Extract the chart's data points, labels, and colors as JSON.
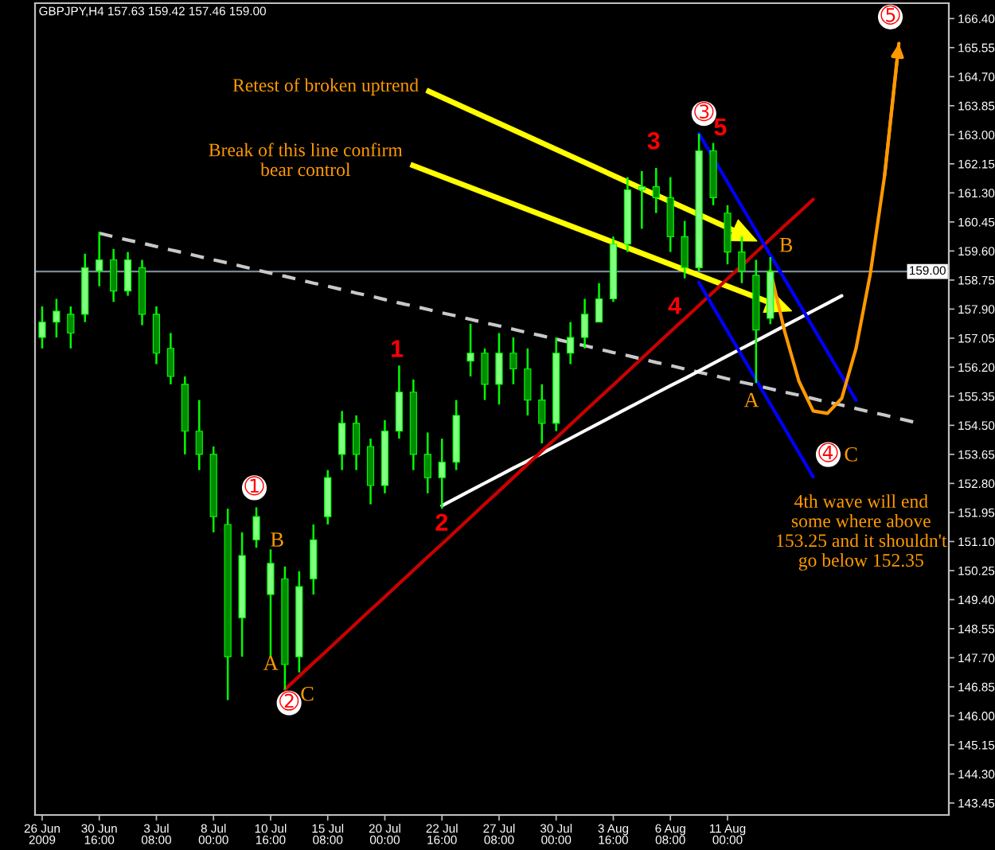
{
  "chart_data": {
    "type": "candlestick",
    "title": "GBPJPY,H4 157.63 159.42 157.46 159.00",
    "color": "#00ff00",
    "categories": [
      "26 Jun 2009",
      null,
      null,
      null,
      "30 Jun 16:00",
      null,
      null,
      null,
      "3 Jul 08:00",
      null,
      null,
      null,
      "8 Jul 00:00",
      null,
      null,
      null,
      "10 Jul 16:00",
      null,
      null,
      null,
      "15 Jul 08:00",
      null,
      null,
      null,
      "20 Jul 00:00",
      null,
      null,
      null,
      "22 Jul 16:00",
      null,
      null,
      null,
      "27 Jul 08:00",
      null,
      null,
      null,
      "30 Jul 00:00",
      null,
      null,
      null,
      "3 Aug 16:00",
      null,
      null,
      null,
      "6 Aug 08:00",
      null,
      null,
      null,
      "11 Aug 00:00",
      null,
      null,
      null,
      null,
      null,
      null,
      null,
      null,
      null,
      null,
      null,
      null,
      null,
      null,
      null
    ],
    "ohlc": [
      [
        157.07,
        157.98,
        156.75,
        157.52
      ],
      [
        157.52,
        158.2,
        157.07,
        157.84
      ],
      [
        157.75,
        157.98,
        156.75,
        157.2
      ],
      [
        157.75,
        159.52,
        157.52,
        159.11
      ],
      [
        159.02,
        160.16,
        158.57,
        159.34
      ],
      [
        159.34,
        159.66,
        158.11,
        158.43
      ],
      [
        158.43,
        159.57,
        158.29,
        159.34
      ],
      [
        159.11,
        159.34,
        157.43,
        157.75
      ],
      [
        157.75,
        157.98,
        156.29,
        156.61
      ],
      [
        156.75,
        157.2,
        155.7,
        155.93
      ],
      [
        155.7,
        155.93,
        153.65,
        154.33
      ],
      [
        154.33,
        155.24,
        153.19,
        153.65
      ],
      [
        153.65,
        153.88,
        151.37,
        151.83
      ],
      [
        151.6,
        152.06,
        146.46,
        147.73
      ],
      [
        148.87,
        151.37,
        147.73,
        150.69
      ],
      [
        151.15,
        152.1,
        150.92,
        151.83
      ],
      [
        149.55,
        150.87,
        147.73,
        150.46
      ],
      [
        150.01,
        150.37,
        146.77,
        147.5
      ],
      [
        147.73,
        150.23,
        147.27,
        149.78
      ],
      [
        150.01,
        151.6,
        149.55,
        151.15
      ],
      [
        151.83,
        153.19,
        151.6,
        152.97
      ],
      [
        153.65,
        154.92,
        153.19,
        154.56
      ],
      [
        154.56,
        154.79,
        153.19,
        153.65
      ],
      [
        153.88,
        154.11,
        152.19,
        152.74
      ],
      [
        152.74,
        154.65,
        152.51,
        154.33
      ],
      [
        154.33,
        156.25,
        154.11,
        155.47
      ],
      [
        155.47,
        155.84,
        153.19,
        153.65
      ],
      [
        153.65,
        154.29,
        152.51,
        152.97
      ],
      [
        152.97,
        154.11,
        152.06,
        153.42
      ],
      [
        153.42,
        155.24,
        153.19,
        154.79
      ],
      [
        156.38,
        157.47,
        155.93,
        156.61
      ],
      [
        156.61,
        156.75,
        155.24,
        155.7
      ],
      [
        155.7,
        157.2,
        155.11,
        156.61
      ],
      [
        156.61,
        157.07,
        155.7,
        156.15
      ],
      [
        156.15,
        156.75,
        154.79,
        155.24
      ],
      [
        155.24,
        155.7,
        153.97,
        154.56
      ],
      [
        154.56,
        157.07,
        154.33,
        156.61
      ],
      [
        156.61,
        157.52,
        156.29,
        157.07
      ],
      [
        157.07,
        158.2,
        156.75,
        157.75
      ],
      [
        157.52,
        158.66,
        157.52,
        158.2
      ],
      [
        158.2,
        160.02,
        158.11,
        159.8
      ],
      [
        159.8,
        161.76,
        159.57,
        161.39
      ],
      [
        161.39,
        161.94,
        160.25,
        161.48
      ],
      [
        161.48,
        162.03,
        160.71,
        161.16
      ],
      [
        161.16,
        161.76,
        159.57,
        160.02
      ],
      [
        160.02,
        160.48,
        158.8,
        159.11
      ],
      [
        159.11,
        163.03,
        159.02,
        162.53
      ],
      [
        162.53,
        162.76,
        160.94,
        161.16
      ],
      [
        160.71,
        160.94,
        159.21,
        159.57
      ],
      [
        159.57,
        160.02,
        158.66,
        159.02
      ],
      [
        158.89,
        159.34,
        155.74,
        157.29
      ],
      [
        157.63,
        159.42,
        157.46,
        159.0
      ],
      null,
      null,
      null,
      null,
      null,
      null,
      null,
      null,
      null,
      null,
      null,
      null
    ],
    "ylim": [
      143.1,
      166.85
    ],
    "yticks": [
      {
        "value": 166.4,
        "label": "166.40"
      },
      {
        "value": 165.55,
        "label": "165.55"
      },
      {
        "value": 164.7,
        "label": "164.70"
      },
      {
        "value": 163.85,
        "label": "163.85"
      },
      {
        "value": 163.0,
        "label": "163.00"
      },
      {
        "value": 162.15,
        "label": "162.15"
      },
      {
        "value": 161.3,
        "label": "161.30"
      },
      {
        "value": 160.45,
        "label": "160.45"
      },
      {
        "value": 159.6,
        "label": "159.60"
      },
      {
        "value": 158.75,
        "label": "158.75"
      },
      {
        "value": 157.9,
        "label": "157.90"
      },
      {
        "value": 157.05,
        "label": "157.05"
      },
      {
        "value": 156.2,
        "label": "156.20"
      },
      {
        "value": 155.35,
        "label": "155.35"
      },
      {
        "value": 154.5,
        "label": "154.50"
      },
      {
        "value": 153.65,
        "label": "153.65"
      },
      {
        "value": 152.8,
        "label": "152.80"
      },
      {
        "value": 151.95,
        "label": "151.95"
      },
      {
        "value": 151.1,
        "label": "151.10"
      },
      {
        "value": 150.25,
        "label": "150.25"
      },
      {
        "value": 149.4,
        "label": "149.40"
      },
      {
        "value": 148.55,
        "label": "148.55"
      },
      {
        "value": 147.7,
        "label": "147.70"
      },
      {
        "value": 146.85,
        "label": "146.85"
      },
      {
        "value": 146.0,
        "label": "146.00"
      },
      {
        "value": 145.15,
        "label": "145.15"
      },
      {
        "value": 144.3,
        "label": "144.30"
      },
      {
        "value": 143.45,
        "label": "143.45"
      }
    ],
    "ref_lines": [
      {
        "axis": "y",
        "value": 159.0,
        "label": "159.00",
        "color": "#778899"
      }
    ],
    "series": [
      {
        "type": "line",
        "color": "#c8c8c8",
        "line_style": "dashed",
        "values": [
          null,
          null,
          null,
          null,
          160.12,
          160.02,
          159.92,
          159.83,
          159.73,
          159.63,
          159.54,
          159.44,
          159.34,
          159.25,
          159.15,
          159.05,
          158.95,
          158.86,
          158.76,
          158.66,
          158.57,
          158.47,
          158.37,
          158.28,
          158.18,
          158.08,
          157.99,
          157.89,
          157.79,
          157.7,
          157.6,
          157.5,
          157.41,
          157.31,
          157.21,
          157.12,
          157.02,
          156.92,
          156.83,
          156.73,
          156.63,
          156.54,
          156.44,
          156.34,
          156.25,
          156.15,
          156.05,
          155.96,
          155.86,
          155.76,
          155.67,
          155.57,
          155.47,
          155.38,
          155.28,
          155.18,
          155.09,
          154.99,
          154.89,
          154.8,
          154.7,
          154.6,
          null,
          null
        ]
      },
      {
        "type": "line",
        "color": "#ffffff",
        "values": [
          null,
          null,
          null,
          null,
          null,
          null,
          null,
          null,
          null,
          null,
          null,
          null,
          null,
          null,
          null,
          null,
          null,
          null,
          null,
          null,
          null,
          null,
          null,
          null,
          null,
          null,
          null,
          null,
          152.15,
          152.37,
          152.59,
          152.81,
          153.03,
          153.25,
          153.46,
          153.68,
          153.9,
          154.12,
          154.34,
          154.56,
          154.78,
          155.0,
          155.22,
          155.44,
          155.66,
          155.87,
          156.09,
          156.31,
          156.53,
          156.75,
          156.97,
          157.19,
          157.41,
          157.63,
          157.85,
          158.07,
          158.29,
          null,
          null,
          null,
          null,
          null,
          null,
          null
        ]
      },
      {
        "type": "line",
        "color": "#cc0000",
        "values": [
          null,
          null,
          null,
          null,
          null,
          null,
          null,
          null,
          null,
          null,
          null,
          null,
          null,
          null,
          null,
          null,
          null,
          146.77,
          147.16,
          147.55,
          147.93,
          148.32,
          148.71,
          149.1,
          149.48,
          149.87,
          150.26,
          150.65,
          151.03,
          151.42,
          151.81,
          152.2,
          152.58,
          152.97,
          153.36,
          153.75,
          154.13,
          154.52,
          154.91,
          155.3,
          155.68,
          156.07,
          156.46,
          156.85,
          157.24,
          157.62,
          158.01,
          158.4,
          158.79,
          159.17,
          159.56,
          159.95,
          160.34,
          160.72,
          161.11,
          null,
          null,
          null,
          null,
          null,
          null,
          null,
          null,
          null
        ]
      },
      {
        "type": "line",
        "color": "#0000ff",
        "values": [
          null,
          null,
          null,
          null,
          null,
          null,
          null,
          null,
          null,
          null,
          null,
          null,
          null,
          null,
          null,
          null,
          null,
          null,
          null,
          null,
          null,
          null,
          null,
          null,
          null,
          null,
          null,
          null,
          null,
          null,
          null,
          null,
          null,
          null,
          null,
          null,
          null,
          null,
          null,
          null,
          null,
          null,
          null,
          null,
          null,
          null,
          163.03,
          162.32,
          161.61,
          160.9,
          160.19,
          159.48,
          158.78,
          158.07,
          157.36,
          156.65,
          155.94,
          155.23,
          null,
          null,
          null,
          null,
          null,
          null
        ]
      },
      {
        "type": "line",
        "color": "#0000ff",
        "values": [
          null,
          null,
          null,
          null,
          null,
          null,
          null,
          null,
          null,
          null,
          null,
          null,
          null,
          null,
          null,
          null,
          null,
          null,
          null,
          null,
          null,
          null,
          null,
          null,
          null,
          null,
          null,
          null,
          null,
          null,
          null,
          null,
          null,
          null,
          null,
          null,
          null,
          null,
          null,
          null,
          null,
          null,
          null,
          null,
          null,
          null,
          158.68,
          157.96,
          157.25,
          156.54,
          155.83,
          155.12,
          154.41,
          153.7,
          152.99,
          null,
          null,
          null,
          null,
          null,
          null,
          null,
          null,
          null
        ]
      },
      {
        "type": "line",
        "color": "#ff9900",
        "values": [
          null,
          null,
          null,
          null,
          null,
          null,
          null,
          null,
          null,
          null,
          null,
          null,
          null,
          null,
          null,
          null,
          null,
          null,
          null,
          null,
          null,
          null,
          null,
          null,
          null,
          null,
          null,
          null,
          null,
          null,
          null,
          null,
          null,
          null,
          null,
          null,
          null,
          null,
          null,
          null,
          null,
          null,
          null,
          null,
          null,
          null,
          null,
          null,
          null,
          null,
          null,
          159.02,
          157.25,
          155.79,
          154.92,
          154.85,
          155.29,
          156.75,
          158.93,
          161.8,
          165.67,
          null,
          null,
          null
        ]
      }
    ],
    "annotations": [
      "➀",
      "➁",
      "➂",
      "➃",
      "➄",
      "1",
      "2",
      "3",
      "4",
      "5",
      "A",
      "B",
      "C",
      "A",
      "B",
      "C",
      "Retest of broken uptrend",
      "Break of this line confirm\nbear control",
      "4th wave will end\nsome where above\n153.25 and it shouldn't\ngo below 152.35"
    ]
  }
}
